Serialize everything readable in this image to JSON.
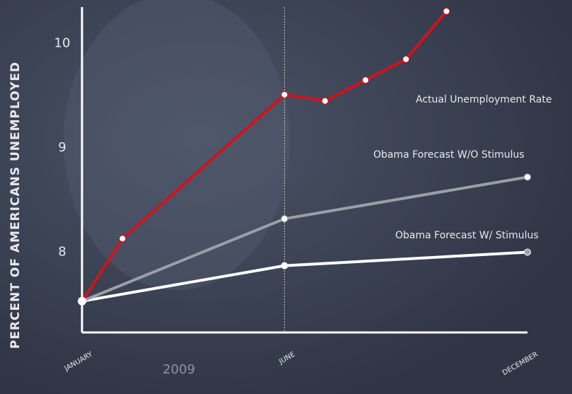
{
  "chart_data": {
    "type": "line",
    "y_label": "PERCENT OF AMERICANS UNEMPLOYED",
    "x_caption": "2009",
    "xlim": [
      1,
      12
    ],
    "xticks": [
      {
        "value": 1,
        "label": "JANUARY"
      },
      {
        "value": 6,
        "label": "JUNE"
      },
      {
        "value": 12,
        "label": "DECEMBER"
      }
    ],
    "ylim": [
      7.23,
      10.35
    ],
    "yticks": [
      8,
      9,
      10
    ],
    "vline_x": 6,
    "series": [
      {
        "name": "Actual Unemployment Rate",
        "color": "#d3121b",
        "x": [
          1,
          2,
          6,
          7,
          8,
          9,
          10
        ],
        "values": [
          7.53,
          8.13,
          9.51,
          9.45,
          9.65,
          9.85,
          10.31
        ]
      },
      {
        "name": "Obama Forecast W/O Stimulus",
        "color": "#9b9fa8",
        "x": [
          1,
          6,
          12
        ],
        "values": [
          7.53,
          8.32,
          8.72
        ]
      },
      {
        "name": "Obama Forecast W/ Stimulus",
        "color": "#ffffff",
        "x": [
          1,
          6,
          12
        ],
        "values": [
          7.53,
          7.87,
          8.0
        ]
      }
    ]
  }
}
